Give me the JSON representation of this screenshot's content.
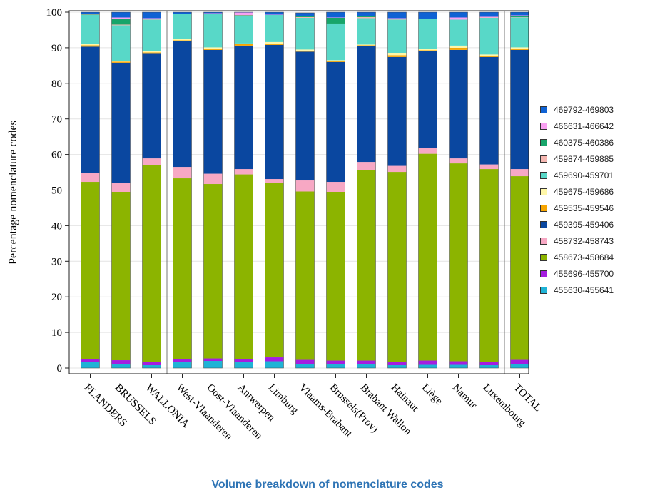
{
  "caption": "Volume breakdown of nomenclature codes",
  "chart_data": {
    "type": "bar",
    "stacked": true,
    "ylabel": "Percentage nomenclature codes",
    "xlabel": "",
    "ylim": [
      0,
      100
    ],
    "yticks": [
      0,
      10,
      20,
      30,
      40,
      50,
      60,
      70,
      80,
      90,
      100
    ],
    "grid": true,
    "legend_position": "right",
    "group_separators_after": [
      "WALLONIA",
      "Luxembourg"
    ],
    "categories": [
      "FLANDERS",
      "BRUSSELS",
      "WALLONIA",
      "West-Vlaanderen",
      "Oost-Vlaanderen",
      "Antwerpen",
      "Limburg",
      "Vlaams-Brabant",
      "Brussels(Prov)",
      "Brabant Wallon",
      "Hainaut",
      "Liège",
      "Namur",
      "Luxembourg",
      "TOTAL"
    ],
    "series": [
      {
        "name": "455630-455641",
        "color": "#1fb3d6",
        "values": [
          1.8,
          1.0,
          0.8,
          1.6,
          2.0,
          1.6,
          1.9,
          1.0,
          1.0,
          1.0,
          0.8,
          0.9,
          0.9,
          0.8,
          1.2
        ]
      },
      {
        "name": "455696-455700",
        "color": "#a51de0",
        "values": [
          0.8,
          1.2,
          1.0,
          0.9,
          0.7,
          0.9,
          1.1,
          1.3,
          1.1,
          1.1,
          0.9,
          1.2,
          1.0,
          0.9,
          1.1
        ]
      },
      {
        "name": "458673-458684",
        "color": "#8cb400",
        "values": [
          49.7,
          47.3,
          55.3,
          50.8,
          49.0,
          51.9,
          49.0,
          47.3,
          47.4,
          53.6,
          53.4,
          58.1,
          55.6,
          54.2,
          51.6
        ]
      },
      {
        "name": "458732-458743",
        "color": "#f7a8c4",
        "values": [
          2.5,
          2.5,
          1.8,
          3.2,
          2.9,
          1.5,
          1.1,
          3.1,
          2.8,
          2.2,
          1.7,
          1.6,
          1.4,
          1.3,
          2.0
        ]
      },
      {
        "name": "459395-459406",
        "color": "#0a47a0",
        "values": [
          35.5,
          33.8,
          29.4,
          35.3,
          34.8,
          34.7,
          37.7,
          36.2,
          33.7,
          32.5,
          30.6,
          27.2,
          30.5,
          30.2,
          33.5
        ]
      },
      {
        "name": "459535-459546",
        "color": "#f7a500",
        "values": [
          0.4,
          0.3,
          0.4,
          0.3,
          0.4,
          0.4,
          0.3,
          0.3,
          0.3,
          0.3,
          0.5,
          0.3,
          0.6,
          0.3,
          0.4
        ]
      },
      {
        "name": "459675-459686",
        "color": "#fff7a8",
        "values": [
          0.3,
          0.2,
          0.4,
          0.3,
          0.3,
          0.2,
          0.5,
          0.3,
          0.2,
          0.2,
          0.5,
          0.3,
          0.6,
          0.4,
          0.3
        ]
      },
      {
        "name": "459690-459701",
        "color": "#58d8c8",
        "values": [
          8.2,
          10.0,
          8.8,
          7.0,
          9.5,
          7.6,
          7.6,
          8.9,
          10.1,
          7.4,
          9.5,
          8.4,
          7.3,
          10.3,
          8.4
        ]
      },
      {
        "name": "459874-459885",
        "color": "#f5b7b1",
        "values": [
          0.1,
          0.2,
          0.1,
          0.0,
          0.0,
          0.3,
          0.0,
          0.2,
          0.2,
          0.3,
          0.1,
          0.1,
          0.0,
          0.1,
          0.1
        ]
      },
      {
        "name": "460375-460386",
        "color": "#17a56a",
        "values": [
          0.1,
          1.5,
          0.1,
          0.0,
          0.0,
          0.1,
          0.0,
          0.2,
          1.6,
          0.2,
          0.1,
          0.0,
          0.0,
          0.0,
          0.2
        ]
      },
      {
        "name": "466631-466642",
        "color": "#f9a0f2",
        "values": [
          0.2,
          0.5,
          0.2,
          0.1,
          0.1,
          0.7,
          0.1,
          0.2,
          0.1,
          0.2,
          0.2,
          0.1,
          0.6,
          0.2,
          0.3
        ]
      },
      {
        "name": "469792-469803",
        "color": "#0f62d4",
        "values": [
          0.4,
          1.5,
          1.7,
          0.5,
          0.3,
          0.1,
          0.7,
          0.8,
          1.5,
          1.0,
          1.7,
          1.8,
          1.5,
          1.3,
          0.9
        ]
      }
    ]
  }
}
